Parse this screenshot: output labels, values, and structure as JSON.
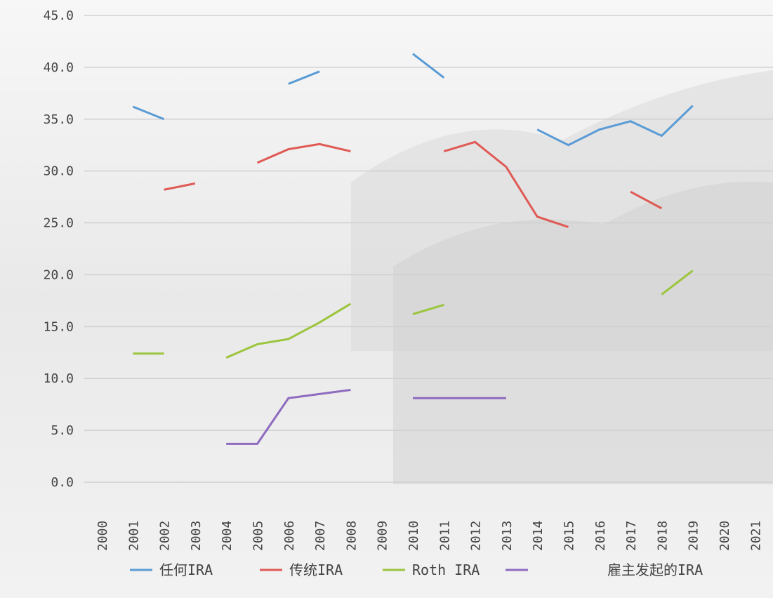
{
  "chart_data": {
    "type": "line",
    "x": [
      "2000",
      "2001",
      "2002",
      "2003",
      "2004",
      "2005",
      "2006",
      "2007",
      "2008",
      "2009",
      "2010",
      "2011",
      "2012",
      "2013",
      "2014",
      "2015",
      "2016",
      "2017",
      "2018",
      "2019",
      "2020",
      "2021"
    ],
    "ylim": [
      0,
      45
    ],
    "yticks": [
      {
        "value": 0,
        "label": "0.0"
      },
      {
        "value": 5,
        "label": "5.0"
      },
      {
        "value": 10,
        "label": "10.0"
      },
      {
        "value": 15,
        "label": "15.0"
      },
      {
        "value": 20,
        "label": "20.0"
      },
      {
        "value": 25,
        "label": "25.0"
      },
      {
        "value": 30,
        "label": "30.0"
      },
      {
        "value": 35,
        "label": "35.0"
      },
      {
        "value": 40,
        "label": "40.0"
      },
      {
        "value": 45,
        "label": "45.0"
      }
    ],
    "grid": true,
    "series": [
      {
        "name": "任何IRA",
        "color": "#5b9bd5",
        "values": [
          null,
          36.2,
          35.0,
          null,
          null,
          null,
          38.4,
          39.6,
          null,
          null,
          41.3,
          39.0,
          null,
          null,
          34.0,
          32.5,
          34.0,
          34.8,
          33.4,
          36.3,
          null,
          null
        ]
      },
      {
        "name": "传统IRA",
        "color": "#e05a55",
        "values": [
          null,
          null,
          28.2,
          28.8,
          null,
          30.8,
          32.1,
          32.6,
          31.9,
          null,
          null,
          31.9,
          32.8,
          30.4,
          25.6,
          24.6,
          null,
          28.0,
          26.4,
          null,
          null,
          null
        ]
      },
      {
        "name": "Roth IRA",
        "color": "#9bc53d",
        "values": [
          null,
          12.4,
          12.4,
          null,
          12.0,
          13.3,
          13.8,
          15.4,
          17.2,
          null,
          16.2,
          17.1,
          null,
          null,
          null,
          null,
          null,
          null,
          18.1,
          20.4,
          null,
          null
        ]
      },
      {
        "name": "雇主发起的IRA",
        "color": "#8e6bbf",
        "values": [
          null,
          null,
          null,
          null,
          3.7,
          3.7,
          8.1,
          8.5,
          8.9,
          null,
          8.1,
          8.1,
          8.1,
          8.1,
          null,
          null,
          null,
          null,
          null,
          null,
          null,
          null
        ]
      }
    ]
  }
}
